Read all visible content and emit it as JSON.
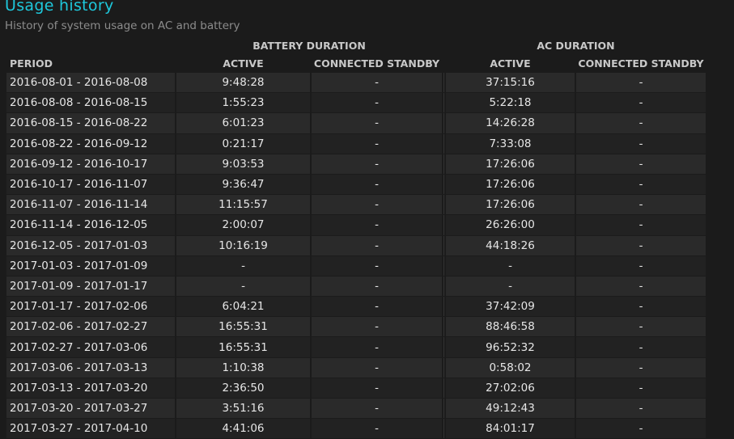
{
  "header": {
    "title": "Usage history",
    "subtitle": "History of system usage on AC and battery"
  },
  "colors": {
    "accent": "#1ec8dc",
    "background": "#1b1b1b"
  },
  "table": {
    "group_headers": [
      "BATTERY DURATION",
      "AC DURATION"
    ],
    "columns": [
      "PERIOD",
      "ACTIVE",
      "CONNECTED STANDBY",
      "ACTIVE",
      "CONNECTED STANDBY"
    ],
    "rows": [
      [
        "2016-08-01 - 2016-08-08",
        "9:48:28",
        "-",
        "37:15:16",
        "-"
      ],
      [
        "2016-08-08 - 2016-08-15",
        "1:55:23",
        "-",
        "5:22:18",
        "-"
      ],
      [
        "2016-08-15 - 2016-08-22",
        "6:01:23",
        "-",
        "14:26:28",
        "-"
      ],
      [
        "2016-08-22 - 2016-09-12",
        "0:21:17",
        "-",
        "7:33:08",
        "-"
      ],
      [
        "2016-09-12 - 2016-10-17",
        "9:03:53",
        "-",
        "17:26:06",
        "-"
      ],
      [
        "2016-10-17 - 2016-11-07",
        "9:36:47",
        "-",
        "17:26:06",
        "-"
      ],
      [
        "2016-11-07 - 2016-11-14",
        "11:15:57",
        "-",
        "17:26:06",
        "-"
      ],
      [
        "2016-11-14 - 2016-12-05",
        "2:00:07",
        "-",
        "26:26:00",
        "-"
      ],
      [
        "2016-12-05 - 2017-01-03",
        "10:16:19",
        "-",
        "44:18:26",
        "-"
      ],
      [
        "2017-01-03 - 2017-01-09",
        "-",
        "-",
        "-",
        "-"
      ],
      [
        "2017-01-09 - 2017-01-17",
        "-",
        "-",
        "-",
        "-"
      ],
      [
        "2017-01-17 - 2017-02-06",
        "6:04:21",
        "-",
        "37:42:09",
        "-"
      ],
      [
        "2017-02-06 - 2017-02-27",
        "16:55:31",
        "-",
        "88:46:58",
        "-"
      ],
      [
        "2017-02-27 - 2017-03-06",
        "16:55:31",
        "-",
        "96:52:32",
        "-"
      ],
      [
        "2017-03-06 - 2017-03-13",
        "1:10:38",
        "-",
        "0:58:02",
        "-"
      ],
      [
        "2017-03-13 - 2017-03-20",
        "2:36:50",
        "-",
        "27:02:06",
        "-"
      ],
      [
        "2017-03-20 - 2017-03-27",
        "3:51:16",
        "-",
        "49:12:43",
        "-"
      ],
      [
        "2017-03-27 - 2017-04-10",
        "4:41:06",
        "-",
        "84:01:17",
        "-"
      ]
    ]
  }
}
